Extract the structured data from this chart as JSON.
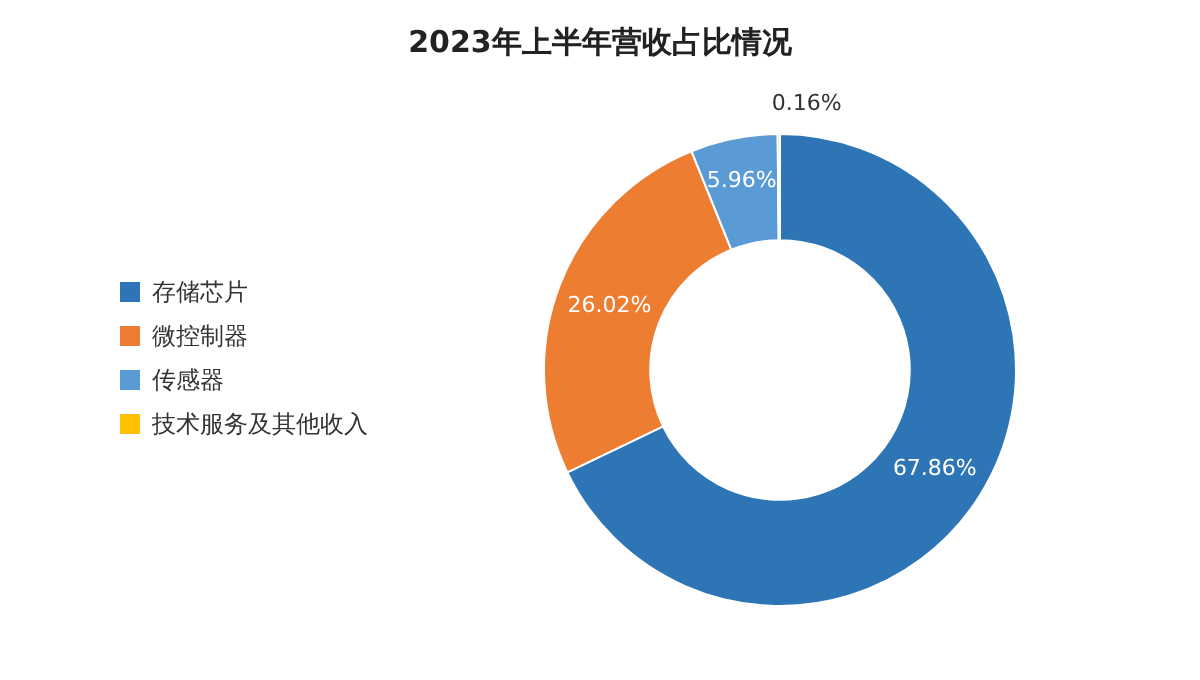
{
  "chart_data": {
    "type": "donut",
    "title": "2023年上半年营收占比情况",
    "categories": [
      "存储芯片",
      "微控制器",
      "传感器",
      "技术服务及其他收入"
    ],
    "values": [
      67.86,
      26.02,
      5.96,
      0.16
    ],
    "colors": [
      "#2e75b6",
      "#ed7d31",
      "#5b9bd5",
      "#ffc000"
    ],
    "value_labels": [
      "67.86%",
      "26.02%",
      "5.96%",
      "0.16%"
    ],
    "legend": "left"
  }
}
